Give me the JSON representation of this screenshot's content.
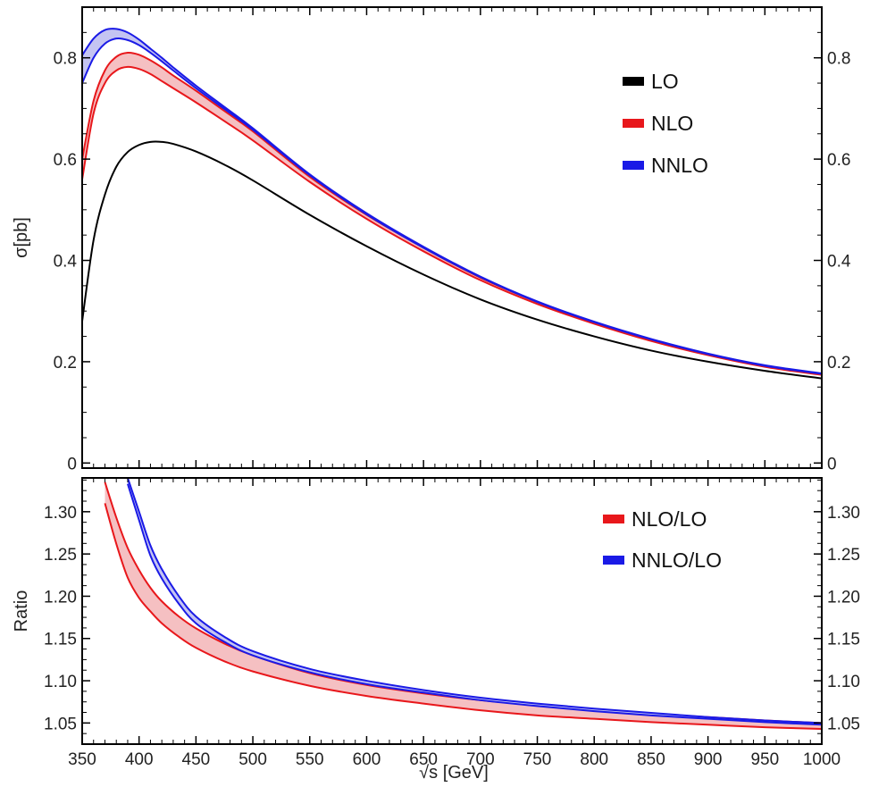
{
  "colors": {
    "lo": "#000000",
    "nlo": "#e8171b",
    "nnlo": "#1a1ae6",
    "nlo_fill": "#f5c0c2",
    "nnlo_fill": "#c4c4f2",
    "frame": "#000000"
  },
  "chart_data": [
    {
      "type": "line",
      "panel": "cross-section",
      "xlabel": "√s [GeV]",
      "ylabel": "σ[pb]",
      "xlim": [
        350,
        1000
      ],
      "ylim": [
        -0.01,
        0.9
      ],
      "yticks": [
        0,
        0.2,
        0.4,
        0.6,
        0.8
      ],
      "ytick_labels": [
        "0",
        "0.2",
        "0.4",
        "0.6",
        "0.8"
      ],
      "legend_position": "top-right",
      "x": [
        350,
        360,
        370,
        380,
        390,
        400,
        410,
        420,
        430,
        450,
        475,
        500,
        550,
        600,
        650,
        700,
        750,
        800,
        850,
        900,
        950,
        1000
      ],
      "series": [
        {
          "name": "LO",
          "band": false,
          "values": [
            0.28,
            0.44,
            0.53,
            0.585,
            0.614,
            0.628,
            0.634,
            0.634,
            0.63,
            0.615,
            0.589,
            0.558,
            0.49,
            0.428,
            0.372,
            0.323,
            0.283,
            0.25,
            0.222,
            0.2,
            0.182,
            0.167
          ]
        },
        {
          "name": "NLO",
          "band": true,
          "upper": [
            0.6,
            0.715,
            0.775,
            0.802,
            0.81,
            0.806,
            0.795,
            0.781,
            0.765,
            0.735,
            0.695,
            0.655,
            0.565,
            0.49,
            0.425,
            0.366,
            0.318,
            0.278,
            0.244,
            0.215,
            0.192,
            0.176
          ],
          "lower": [
            0.56,
            0.69,
            0.75,
            0.775,
            0.782,
            0.778,
            0.768,
            0.754,
            0.74,
            0.712,
            0.675,
            0.637,
            0.555,
            0.482,
            0.418,
            0.361,
            0.314,
            0.275,
            0.241,
            0.213,
            0.19,
            0.174
          ]
        },
        {
          "name": "NNLO",
          "band": true,
          "upper": [
            0.805,
            0.838,
            0.855,
            0.857,
            0.85,
            0.836,
            0.818,
            0.8,
            0.781,
            0.745,
            0.703,
            0.661,
            0.57,
            0.493,
            0.427,
            0.368,
            0.319,
            0.279,
            0.245,
            0.216,
            0.193,
            0.177
          ],
          "lower": [
            0.75,
            0.8,
            0.828,
            0.838,
            0.835,
            0.825,
            0.81,
            0.793,
            0.775,
            0.74,
            0.699,
            0.658,
            0.568,
            0.491,
            0.425,
            0.367,
            0.318,
            0.278,
            0.244,
            0.215,
            0.192,
            0.176
          ]
        }
      ]
    },
    {
      "type": "line",
      "panel": "ratio",
      "xlabel": "√s [GeV]",
      "ylabel": "Ratio",
      "xlim": [
        350,
        1000
      ],
      "ylim": [
        1.025,
        1.34
      ],
      "yticks": [
        1.05,
        1.1,
        1.15,
        1.2,
        1.25,
        1.3
      ],
      "ytick_labels": [
        "1.05",
        "1.10",
        "1.15",
        "1.20",
        "1.25",
        "1.30"
      ],
      "xticks": [
        350,
        400,
        450,
        500,
        550,
        600,
        650,
        700,
        750,
        800,
        850,
        900,
        950,
        1000
      ],
      "xtick_labels": [
        "350",
        "400",
        "450",
        "500",
        "550",
        "600",
        "650",
        "700",
        "750",
        "800",
        "850",
        "900",
        "950",
        "1000"
      ],
      "legend_position": "top-right",
      "x": [
        370,
        380,
        390,
        400,
        410,
        420,
        435,
        450,
        475,
        500,
        550,
        600,
        650,
        700,
        750,
        800,
        850,
        900,
        950,
        1000
      ],
      "series": [
        {
          "name": "NLO/LO",
          "band": true,
          "upper": [
            1.335,
            1.293,
            1.257,
            1.231,
            1.21,
            1.194,
            1.176,
            1.162,
            1.144,
            1.13,
            1.109,
            1.095,
            1.085,
            1.077,
            1.071,
            1.066,
            1.061,
            1.057,
            1.053,
            1.05
          ],
          "lower": [
            1.31,
            1.262,
            1.222,
            1.198,
            1.182,
            1.168,
            1.152,
            1.139,
            1.123,
            1.111,
            1.094,
            1.082,
            1.073,
            1.065,
            1.059,
            1.055,
            1.051,
            1.048,
            1.045,
            1.043
          ]
        },
        {
          "name": "NNLO/LO",
          "band": true,
          "upper": [
            null,
            null,
            1.34,
            1.3,
            1.26,
            1.232,
            1.2,
            1.176,
            1.152,
            1.135,
            1.114,
            1.1,
            1.089,
            1.08,
            1.073,
            1.067,
            1.062,
            1.057,
            1.053,
            1.05
          ],
          "lower": [
            null,
            null,
            1.333,
            1.29,
            1.248,
            1.221,
            1.191,
            1.168,
            1.146,
            1.13,
            1.11,
            1.096,
            1.086,
            1.077,
            1.07,
            1.064,
            1.059,
            1.055,
            1.051,
            1.048
          ]
        }
      ]
    }
  ]
}
